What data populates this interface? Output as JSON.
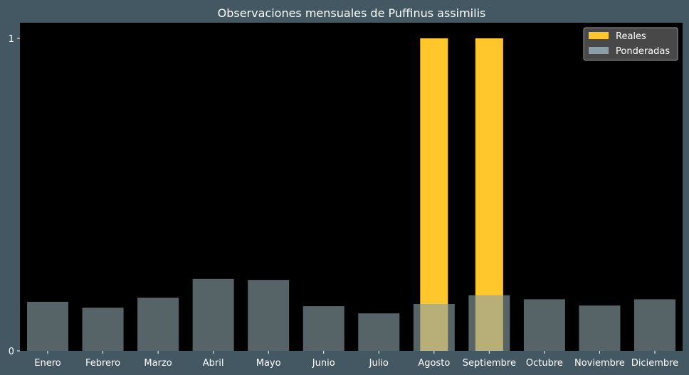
{
  "chart_data": {
    "type": "bar",
    "title": "Observaciones mensuales de Puffinus assimilis",
    "xlabel": "",
    "ylabel": "",
    "categories": [
      "Enero",
      "Febrero",
      "Marzo",
      "Abril",
      "Mayo",
      "Junio",
      "Julio",
      "Agosto",
      "Septiembre",
      "Octubre",
      "Noviembre",
      "Diciembre"
    ],
    "series": [
      {
        "name": "Reales",
        "color": "#ffc72c",
        "values": [
          0,
          0,
          0,
          0,
          0,
          0,
          0,
          1,
          1,
          0,
          0,
          0
        ]
      },
      {
        "name": "Ponderadas",
        "color": "#8aa0a6",
        "values": [
          0.157,
          0.138,
          0.17,
          0.23,
          0.227,
          0.143,
          0.12,
          0.15,
          0.178,
          0.165,
          0.145,
          0.165
        ]
      }
    ],
    "ylim": [
      0,
      1.05
    ],
    "yticks": [
      0,
      1
    ],
    "grid": false,
    "legend_position": "top-right",
    "colors": {
      "background": "#435863",
      "plot_area": "#000000",
      "text": "#ffffff",
      "legend_bg": "#555555"
    }
  }
}
